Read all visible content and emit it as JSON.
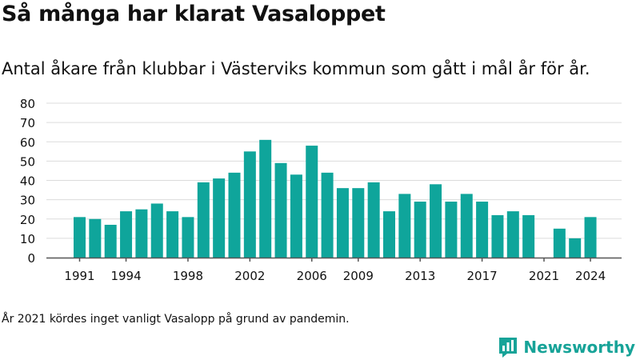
{
  "title": "Så många har klarat Vasaloppet",
  "subtitle": "Antal åkare från klubbar i Västerviks kommun som gått i mål år för år.",
  "footnote": "År 2021 kördes inget vanligt Vasalopp på grund av pandemin.",
  "brand": {
    "name": "Newsworthy",
    "icon": "newsworthy-logo-icon",
    "color": "#17a398"
  },
  "colors": {
    "bar": "#0fa59b",
    "grid": "#dcdcdc",
    "axis": "#555555"
  },
  "chart_data": {
    "type": "bar",
    "x": [
      1991,
      1992,
      1993,
      1994,
      1995,
      1996,
      1997,
      1998,
      1999,
      2000,
      2001,
      2002,
      2003,
      2004,
      2005,
      2006,
      2007,
      2008,
      2009,
      2010,
      2011,
      2012,
      2013,
      2014,
      2015,
      2016,
      2017,
      2018,
      2019,
      2020,
      2021,
      2022,
      2023,
      2024
    ],
    "values": [
      21,
      20,
      17,
      24,
      25,
      28,
      24,
      21,
      39,
      41,
      44,
      55,
      61,
      49,
      43,
      58,
      44,
      36,
      36,
      39,
      24,
      33,
      29,
      38,
      29,
      33,
      29,
      22,
      24,
      22,
      0,
      15,
      10,
      21
    ],
    "xticks": [
      1991,
      1994,
      1998,
      2002,
      2006,
      2009,
      2013,
      2017,
      2021,
      2024
    ],
    "yticks": [
      0,
      10,
      20,
      30,
      40,
      50,
      60,
      70,
      80
    ],
    "ylim": [
      0,
      80
    ],
    "grid": true,
    "xlabel": "",
    "ylabel": ""
  }
}
